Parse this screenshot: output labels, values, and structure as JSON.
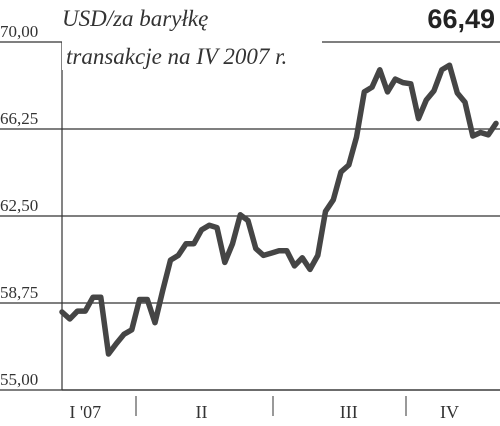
{
  "chart_data": {
    "type": "line",
    "title": "USD/za baryłkę",
    "subtitle": "transakcje na IV 2007 r.",
    "annotation": "66,49",
    "categories": [
      null,
      null,
      null,
      "I '07",
      null,
      null,
      null,
      null,
      null,
      null,
      null,
      null,
      null,
      null,
      null,
      null,
      null,
      null,
      "II",
      null,
      null,
      null,
      null,
      null,
      null,
      null,
      null,
      null,
      null,
      null,
      null,
      null,
      null,
      null,
      null,
      null,
      null,
      "III",
      null,
      null,
      null,
      null,
      null,
      null,
      null,
      null,
      null,
      null,
      null,
      null,
      "IV",
      null,
      null,
      null,
      null,
      null,
      null
    ],
    "values": [
      58.36,
      58.06,
      58.4,
      58.4,
      59.0,
      59.0,
      56.55,
      57.0,
      57.4,
      57.6,
      58.9,
      58.9,
      57.9,
      59.3,
      60.6,
      60.8,
      61.3,
      61.3,
      61.9,
      62.1,
      62.0,
      60.5,
      61.3,
      62.55,
      62.3,
      61.1,
      60.8,
      60.9,
      61.0,
      61.0,
      60.35,
      60.7,
      60.2,
      60.8,
      62.7,
      63.2,
      64.4,
      64.7,
      65.9,
      67.85,
      68.05,
      68.8,
      67.85,
      68.4,
      68.25,
      68.2,
      66.7,
      67.5,
      67.9,
      68.8,
      69.0,
      67.8,
      67.4,
      65.95,
      66.1,
      66.0,
      66.49
    ],
    "color": "#454545",
    "ylim": [
      55,
      70
    ],
    "yticks": [
      {
        "value": 55,
        "label": "55,00"
      },
      {
        "value": 58.75,
        "label": "58,75"
      },
      {
        "value": 62.5,
        "label": "62,50"
      },
      {
        "value": 66.25,
        "label": "66,25"
      },
      {
        "value": 70,
        "label": "70,00"
      }
    ],
    "grid": true
  }
}
